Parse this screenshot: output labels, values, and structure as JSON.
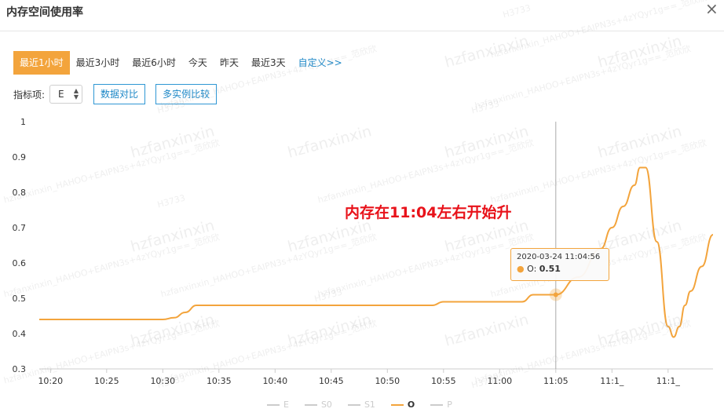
{
  "window": {
    "title": "内存空间使用率",
    "close_glyph": "×"
  },
  "range_tabs": [
    {
      "label": "最近1小时",
      "active": true
    },
    {
      "label": "最近3小时"
    },
    {
      "label": "最近6小时"
    },
    {
      "label": "今天"
    },
    {
      "label": "昨天"
    },
    {
      "label": "最近3天"
    },
    {
      "label": "自定义>>"
    }
  ],
  "controls": {
    "metric_label": "指标项:",
    "metric_value": "E",
    "compare_label": "数据对比",
    "multi_compare_label": "多实例比较"
  },
  "watermark": {
    "user": "hzfanxinxin",
    "token": "hzfanxinxin_HAHOO+EAIPN3s+4zYQyr1g==_范欣欣",
    "code": "H3733"
  },
  "annotation": "内存在11:04左右开始升",
  "tooltip": {
    "timestamp": "2020-03-24 11:04:56",
    "series": "O",
    "value": "0.51"
  },
  "colors": {
    "accent": "#f3a43c",
    "link": "#1e88c7",
    "annotation": "#e8121a"
  },
  "chart_data": {
    "type": "line",
    "title": "",
    "xlabel": "",
    "ylabel": "",
    "ylim": [
      0.3,
      1
    ],
    "yticks": [
      "0.3",
      "0.4",
      "0.5",
      "0.6",
      "0.7",
      "0.8",
      "0.9",
      "1"
    ],
    "xticks": [
      "10:20",
      "10:25",
      "10:30",
      "10:35",
      "10:40",
      "10:45",
      "10:50",
      "10:55",
      "11:00",
      "11:05",
      "11:1_",
      "11:1_"
    ],
    "x_range": [
      "10:19",
      "11:19"
    ],
    "grid": false,
    "legend_position": "bottom",
    "legend": [
      {
        "name": "E",
        "active": false
      },
      {
        "name": "S0",
        "active": false
      },
      {
        "name": "S1",
        "active": false
      },
      {
        "name": "O",
        "active": true
      },
      {
        "name": "P",
        "active": false
      }
    ],
    "crosshair_x": "11:05",
    "series": [
      {
        "name": "O",
        "color": "#f3a43c",
        "points": [
          [
            "10:19",
            0.44
          ],
          [
            "10:30",
            0.44
          ],
          [
            "10:31",
            0.445
          ],
          [
            "10:32",
            0.46
          ],
          [
            "10:33",
            0.48
          ],
          [
            "10:45",
            0.48
          ],
          [
            "10:54",
            0.48
          ],
          [
            "10:55",
            0.49
          ],
          [
            "11:02",
            0.49
          ],
          [
            "11:03",
            0.51
          ],
          [
            "11:05",
            0.51
          ],
          [
            "11:07",
            0.56
          ],
          [
            "11:09",
            0.64
          ],
          [
            "11:10",
            0.7
          ],
          [
            "11:11",
            0.76
          ],
          [
            "11:12",
            0.82
          ],
          [
            "11:12.5",
            0.87
          ],
          [
            "11:13",
            0.87
          ],
          [
            "11:14",
            0.66
          ],
          [
            "11:15",
            0.42
          ],
          [
            "11:15.5",
            0.39
          ],
          [
            "11:16",
            0.42
          ],
          [
            "11:16.5",
            0.48
          ],
          [
            "11:17",
            0.52
          ],
          [
            "11:18",
            0.59
          ],
          [
            "11:19",
            0.68
          ]
        ]
      }
    ]
  }
}
